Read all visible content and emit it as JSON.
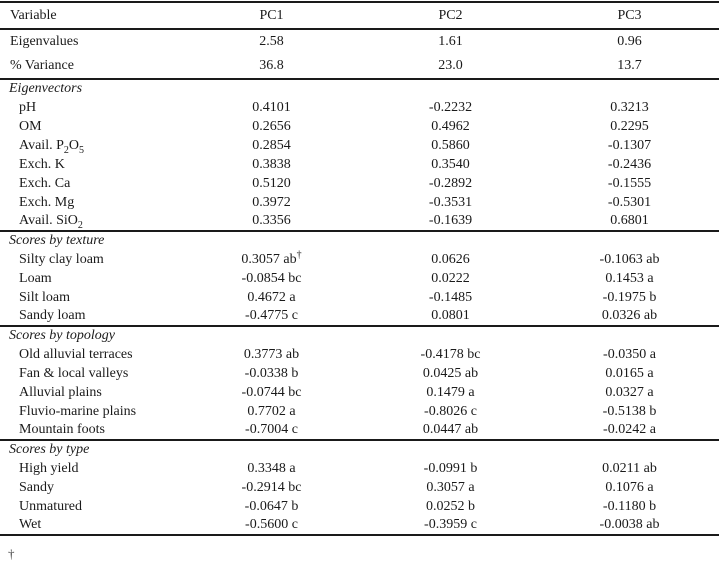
{
  "header": {
    "columns": [
      "Variable",
      "PC1",
      "PC2",
      "PC3"
    ]
  },
  "summary_rows": [
    {
      "label": "Eigenvalues",
      "values": [
        "2.58",
        "1.61",
        "0.96"
      ]
    },
    {
      "label": "% Variance",
      "values": [
        "36.8",
        "23.0",
        "13.7"
      ]
    }
  ],
  "sections": [
    {
      "title": "Eigenvectors",
      "rows": [
        {
          "label": "pH",
          "values": [
            "0.4101",
            "-0.2232",
            "0.3213"
          ]
        },
        {
          "label": "OM",
          "values": [
            "0.2656",
            "0.4962",
            "0.2295"
          ]
        },
        {
          "label": "Avail. P₂O₅",
          "values": [
            "0.2854",
            "0.5860",
            "-0.1307"
          ]
        },
        {
          "label": "Exch. K",
          "values": [
            "0.3838",
            "0.3540",
            "-0.2436"
          ]
        },
        {
          "label": "Exch. Ca",
          "values": [
            "0.5120",
            "-0.2892",
            "-0.1555"
          ]
        },
        {
          "label": "Exch. Mg",
          "values": [
            "0.3972",
            "-0.3531",
            "-0.5301"
          ]
        },
        {
          "label": "Avail. SiO₂",
          "values": [
            "0.3356",
            "-0.1639",
            "0.6801"
          ]
        }
      ]
    },
    {
      "title": "Scores by texture",
      "rows": [
        {
          "label": "Silty clay loam",
          "values": [
            "0.3057 ab",
            "0.0626",
            "-0.1063 ab"
          ],
          "sups": [
            "†",
            "",
            ""
          ]
        },
        {
          "label": "Loam",
          "values": [
            "-0.0854 bc",
            "0.0222",
            "0.1453 a"
          ]
        },
        {
          "label": "Silt loam",
          "values": [
            "0.4672 a",
            "-0.1485",
            "-0.1975 b"
          ]
        },
        {
          "label": "Sandy loam",
          "values": [
            "-0.4775 c",
            "0.0801",
            "0.0326 ab"
          ]
        }
      ]
    },
    {
      "title": "Scores by topology",
      "rows": [
        {
          "label": "Old alluvial terraces",
          "values": [
            "0.3773 ab",
            "-0.4178 bc",
            "-0.0350 a"
          ]
        },
        {
          "label": "Fan & local valleys",
          "values": [
            "-0.0338 b",
            "0.0425 ab",
            "0.0165 a"
          ]
        },
        {
          "label": "Alluvial plains",
          "values": [
            "-0.0744 bc",
            "0.1479 a",
            "0.0327 a"
          ]
        },
        {
          "label": "Fluvio-marine plains",
          "values": [
            "0.7702 a",
            "-0.8026 c",
            "-0.5138 b"
          ]
        },
        {
          "label": "Mountain foots",
          "values": [
            "-0.7004 c",
            "0.0447 ab",
            "-0.0242 a"
          ]
        }
      ]
    },
    {
      "title": "Scores by type",
      "rows": [
        {
          "label": "High yield",
          "values": [
            "0.3348 a",
            "-0.0991 b",
            "0.0211 ab"
          ]
        },
        {
          "label": "Sandy",
          "values": [
            "-0.2914 bc",
            "0.3057 a",
            "0.1076 a"
          ]
        },
        {
          "label": "Unmatured",
          "values": [
            "-0.0647 b",
            "0.0252 b",
            "-0.1180 b"
          ]
        },
        {
          "label": "Wet",
          "values": [
            "-0.5600 c",
            "-0.3959 c",
            "-0.0038 ab"
          ]
        }
      ]
    }
  ],
  "footnote_mark": "†"
}
